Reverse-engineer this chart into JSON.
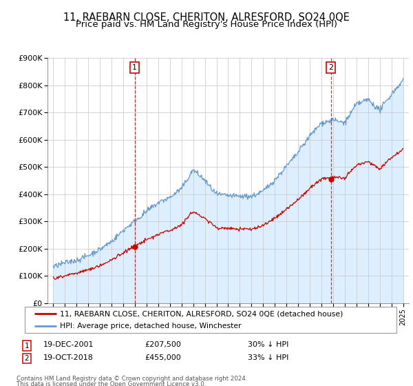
{
  "title": "11, RAEBARN CLOSE, CHERITON, ALRESFORD, SO24 0QE",
  "subtitle": "Price paid vs. HM Land Registry's House Price Index (HPI)",
  "title_fontsize": 10.5,
  "subtitle_fontsize": 9.5,
  "sale1": {
    "date_num": 2001.97,
    "price": 207500,
    "label": "1"
  },
  "sale2": {
    "date_num": 2018.8,
    "price": 455000,
    "label": "2"
  },
  "legend_line1": "11, RAEBARN CLOSE, CHERITON, ALRESFORD, SO24 0QE (detached house)",
  "legend_line2": "HPI: Average price, detached house, Winchester",
  "footnote1": "Contains HM Land Registry data © Crown copyright and database right 2024.",
  "footnote2": "This data is licensed under the Open Government Licence v3.0.",
  "annotation1_date": "19-DEC-2001",
  "annotation1_price": "£207,500",
  "annotation1_hpi": "30% ↓ HPI",
  "annotation2_date": "19-OCT-2018",
  "annotation2_price": "£455,000",
  "annotation2_hpi": "33% ↓ HPI",
  "ylim": [
    0,
    900000
  ],
  "xlim": [
    1994.5,
    2025.5
  ],
  "red_color": "#cc0000",
  "blue_color": "#6699cc",
  "blue_fill_color": "#ddeeff",
  "bg_color": "#ffffff",
  "grid_color": "#cccccc"
}
